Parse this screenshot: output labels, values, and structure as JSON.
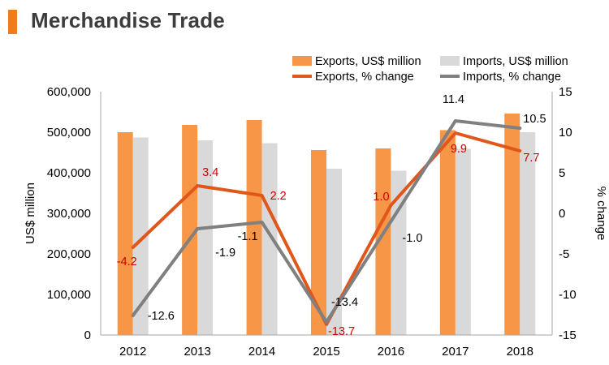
{
  "page": {
    "title": "Merchandise Trade",
    "accent": "#F07C20"
  },
  "chart_data": {
    "type": "bar",
    "title": "Merchandise Trade",
    "categories": [
      "2012",
      "2013",
      "2014",
      "2015",
      "2016",
      "2017",
      "2018"
    ],
    "series": [
      {
        "name": "Exports, US$ million",
        "type": "bar",
        "axis": "left",
        "color": "#F79646",
        "values": [
          500000,
          518000,
          530000,
          456000,
          460000,
          505000,
          546000
        ]
      },
      {
        "name": "Imports, US$ million",
        "type": "bar",
        "axis": "left",
        "color": "#D9D9D9",
        "values": [
          487000,
          480000,
          473000,
          410000,
          405000,
          459000,
          500000
        ]
      },
      {
        "name": "Exports, % change",
        "type": "line",
        "axis": "right",
        "color": "#E0561B",
        "values": [
          -4.2,
          3.4,
          2.2,
          -13.7,
          1.0,
          9.9,
          7.7
        ],
        "labels": [
          "-4.2",
          "3.4",
          "2.2",
          "-13.7",
          "1.0",
          "9.9",
          "7.7"
        ],
        "label_color": "#CC0000"
      },
      {
        "name": "Imports, % change",
        "type": "line",
        "axis": "right",
        "color": "#808080",
        "values": [
          -12.6,
          -1.9,
          -1.1,
          -13.4,
          -1.0,
          11.4,
          10.5
        ],
        "labels": [
          "-12.6",
          "-1.9",
          "-1.1",
          "-13.4",
          "-1.0",
          "11.4",
          "10.5"
        ],
        "label_color": "#000000"
      }
    ],
    "y_left": {
      "label": "US$ million",
      "min": 0,
      "max": 600000,
      "ticks": [
        "0",
        "100,000",
        "200,000",
        "300,000",
        "400,000",
        "500,000",
        "600,000"
      ]
    },
    "y_right": {
      "label": "% change",
      "min": -15,
      "max": 15,
      "ticks": [
        "-15",
        "-10",
        "-5",
        "0",
        "5",
        "10",
        "15"
      ]
    },
    "grid": false,
    "legend": "top-right"
  }
}
